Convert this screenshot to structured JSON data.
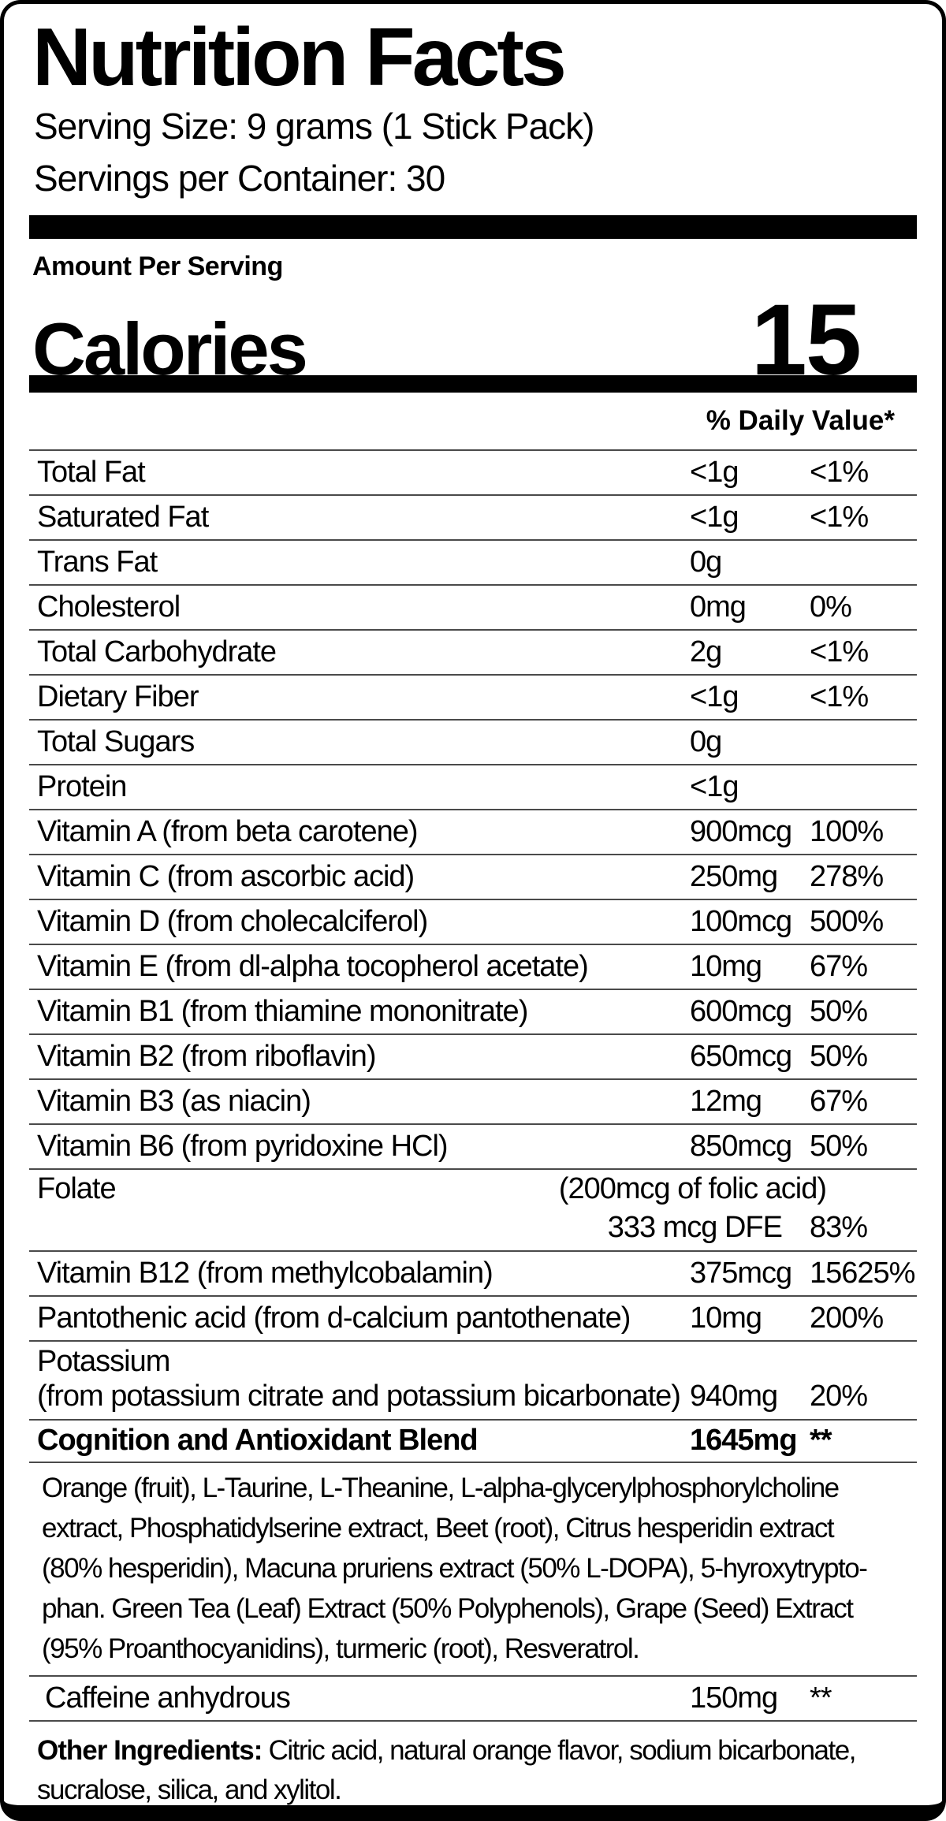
{
  "header": {
    "title": "Nutrition Facts",
    "serving_size": "Serving Size: 9 grams (1 Stick Pack)",
    "servings_per_container": "Servings per Container: 30"
  },
  "calories": {
    "section_label": "Amount Per Serving",
    "name": "Calories",
    "value": "15"
  },
  "daily_value_header": "% Daily Value*",
  "rows_a": [
    {
      "name": "Total Fat",
      "amount": "<1g",
      "pct": "<1%"
    },
    {
      "name": "Saturated Fat",
      "amount": "<1g",
      "pct": "<1%"
    },
    {
      "name": "Trans Fat",
      "amount": "0g",
      "pct": ""
    },
    {
      "name": "Cholesterol",
      "amount": "0mg",
      "pct": "0%"
    },
    {
      "name": "Total Carbohydrate",
      "amount": "2g",
      "pct": "<1%"
    },
    {
      "name": "Dietary Fiber",
      "amount": "<1g",
      "pct": "<1%"
    },
    {
      "name": "Total Sugars",
      "amount": "0g",
      "pct": ""
    },
    {
      "name": "Protein",
      "amount": "<1g",
      "pct": ""
    },
    {
      "name": "Vitamin A (from beta carotene)",
      "amount": "900mcg",
      "pct": "100%"
    },
    {
      "name": "Vitamin C (from ascorbic acid)",
      "amount": "250mg",
      "pct": "278%"
    },
    {
      "name": "Vitamin D (from cholecalciferol)",
      "amount": "100mcg",
      "pct": "500%"
    },
    {
      "name": "Vitamin E (from dl-alpha tocopherol acetate)",
      "amount": "10mg",
      "pct": "67%"
    },
    {
      "name": "Vitamin B1 (from thiamine mononitrate)",
      "amount": "600mcg",
      "pct": "50%"
    },
    {
      "name": "Vitamin B2 (from riboflavin)",
      "amount": "650mcg",
      "pct": "50%"
    },
    {
      "name": "Vitamin B3 (as niacin)",
      "amount": "12mg",
      "pct": "67%"
    },
    {
      "name": "Vitamin B6 (from pyridoxine HCl)",
      "amount": "850mcg",
      "pct": "50%"
    }
  ],
  "folate": {
    "name": "Folate",
    "note": "(200mcg of folic acid)",
    "amount": "333 mcg DFE",
    "pct": "83%"
  },
  "rows_b": [
    {
      "name": "Vitamin B12 (from methylcobalamin)",
      "amount": "375mcg",
      "pct": "15625%"
    },
    {
      "name": "Pantothenic acid (from d-calcium pantothenate)",
      "amount": "10mg",
      "pct": "200%"
    }
  ],
  "potassium": {
    "name": "Potassium",
    "sub": "(from potassium citrate and potassium bicarbonate)",
    "amount": "940mg",
    "pct": "20%"
  },
  "blend": {
    "name": "Cognition and Antioxidant Blend",
    "amount": "1645mg",
    "pct": "**"
  },
  "blend_ingredients_lines": [
    "Orange (fruit), L-Taurine, L-Theanine, L-alpha-glycerylphosphorylcholine",
    "extract, Phosphatidylserine extract, Beet (root), Citrus hesperidin extract",
    "(80% hesperidin), Macuna pruriens extract (50% L-DOPA), 5-hyroxytrypto-",
    "phan. Green Tea (Leaf) Extract (50% Polyphenols), Grape (Seed) Extract",
    "(95% Proanthocyanidins), turmeric (root), Resveratrol."
  ],
  "caffeine": {
    "name": "Caffeine anhydrous",
    "amount": "150mg",
    "pct": "**"
  },
  "other_ingredients": {
    "label": "Other Ingredients:",
    "text": " Citric acid, natural orange flavor, sodium bicarbonate, sucralose, silica, and xylitol."
  }
}
